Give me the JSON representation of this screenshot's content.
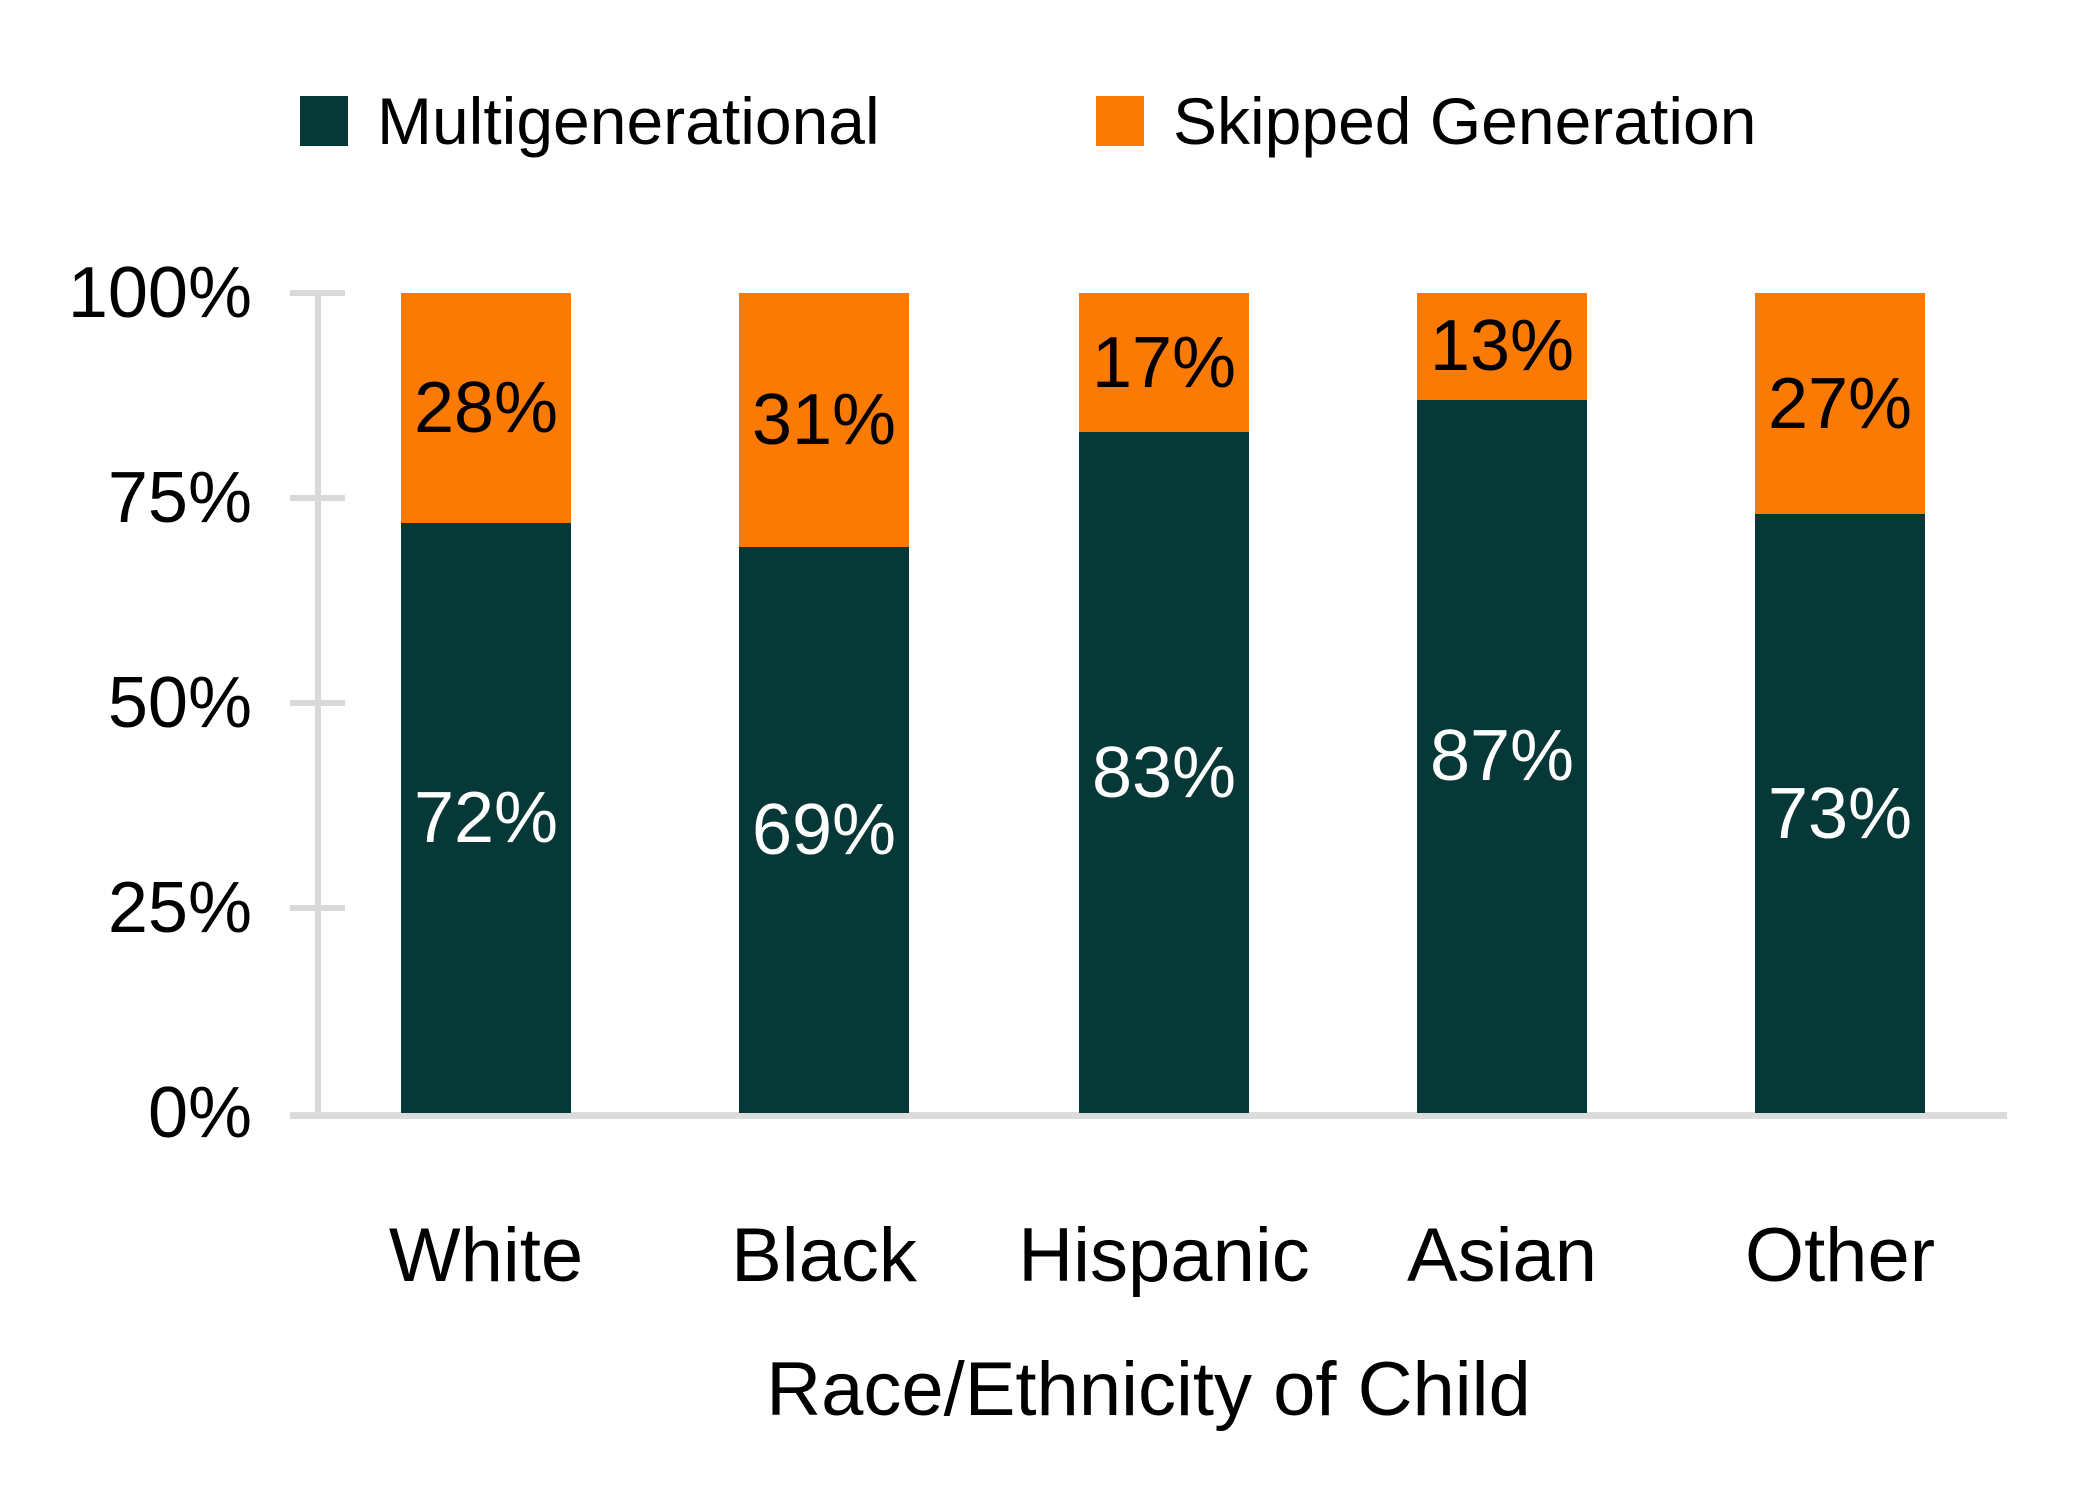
{
  "legend": {
    "items": [
      {
        "label": "Multigenerational",
        "color": "#063837"
      },
      {
        "label": "Skipped Generation",
        "color": "#fb7a04"
      }
    ]
  },
  "chart_data": {
    "type": "bar",
    "stacked": true,
    "stacked_total": "100%",
    "categories": [
      "White",
      "Black",
      "Hispanic",
      "Asian",
      "Other"
    ],
    "series": [
      {
        "name": "Multigenerational",
        "color": "#063837",
        "values": [
          72,
          69,
          83,
          87,
          73
        ],
        "label_color": "#ffffff",
        "labels": [
          "72%",
          "69%",
          "83%",
          "87%",
          "73%"
        ]
      },
      {
        "name": "Skipped Generation",
        "color": "#fb7a04",
        "values": [
          28,
          31,
          17,
          13,
          27
        ],
        "label_color": "#000000",
        "labels": [
          "28%",
          "31%",
          "17%",
          "13%",
          "27%"
        ]
      }
    ],
    "title": "",
    "xlabel": "Race/Ethnicity of Child",
    "ylabel": "",
    "ylim": [
      0,
      100
    ],
    "yticks": [
      {
        "value": 0,
        "label": "0%"
      },
      {
        "value": 25,
        "label": "25%"
      },
      {
        "value": 50,
        "label": "50%"
      },
      {
        "value": 75,
        "label": "75%"
      },
      {
        "value": 100,
        "label": "100%"
      }
    ],
    "grid": false,
    "legend_position": "top",
    "axis_color": "#d9d9d9",
    "text_color": "#000000"
  }
}
